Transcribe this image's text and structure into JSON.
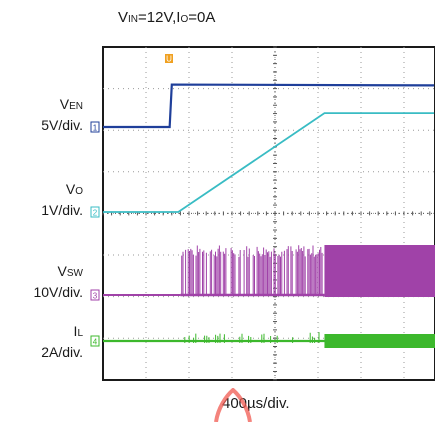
{
  "title": {
    "part1": "V",
    "sub1": "IN",
    "part2": "=12V,I",
    "sub2": "O",
    "part3": "=0A"
  },
  "x_scale_label": "400µs/div.",
  "trigger_marker": "U",
  "channels": [
    {
      "id": "en",
      "name": "V",
      "name_sub": "EN",
      "scale": "5V/div.",
      "marker": "1",
      "color": "#1f3f9a"
    },
    {
      "id": "vo",
      "name": "V",
      "name_sub": "O",
      "scale": "1V/div.",
      "marker": "2",
      "color": "#39bcc4"
    },
    {
      "id": "vsw",
      "name": "V",
      "name_sub": "SW",
      "scale": "10V/div.",
      "marker": "3",
      "color": "#a042a8"
    },
    {
      "id": "il",
      "name": "I",
      "name_sub": "L",
      "scale": "2A/div.",
      "marker": "4",
      "color": "#3cb82c"
    }
  ],
  "chart_data": {
    "type": "line",
    "title": "VIN=12V,IO=0A",
    "xlabel": "400µs/div.",
    "x_unit": "div",
    "xlim": [
      0,
      7.7
    ],
    "grid": true,
    "series": [
      {
        "name": "VEN",
        "scale": "5V/div.",
        "x": [
          0,
          1.55,
          1.6,
          7.7
        ],
        "y": [
          0,
          0,
          5.1,
          5.0
        ]
      },
      {
        "name": "VO",
        "scale": "1V/div.",
        "x": [
          0,
          1.75,
          5.15,
          7.7
        ],
        "y": [
          0,
          0,
          3.3,
          3.3
        ]
      },
      {
        "name": "VSW",
        "scale": "10V/div.",
        "x": [
          0,
          1.8,
          5.15,
          7.7
        ],
        "y": [
          0,
          0,
          12,
          12
        ]
      },
      {
        "name": "IL",
        "scale": "2A/div.",
        "x": [
          0,
          1.8,
          5.15,
          7.7
        ],
        "y": [
          0,
          0,
          0,
          0
        ]
      }
    ]
  }
}
